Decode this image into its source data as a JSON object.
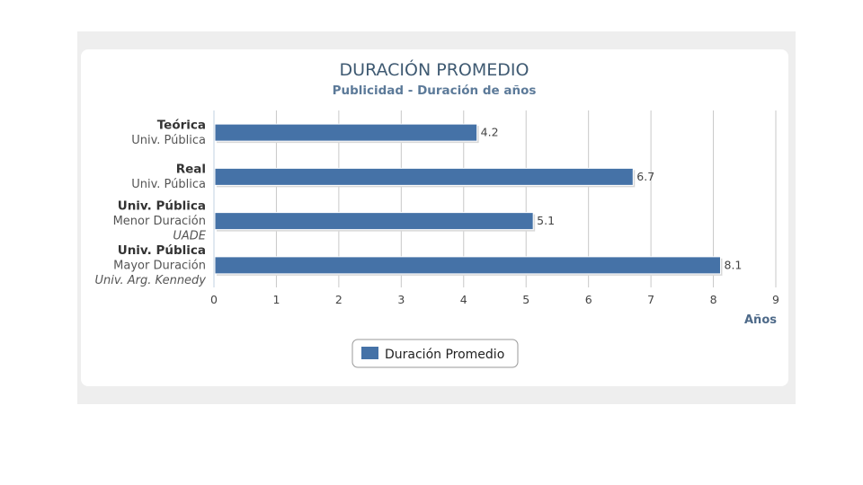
{
  "chart_data": {
    "type": "bar",
    "orientation": "horizontal",
    "title": "DURACIÓN PROMEDIO",
    "subtitle": "Publicidad - Duración de años",
    "categories": [
      {
        "lines": [
          "Teórica",
          "Univ. Pública"
        ]
      },
      {
        "lines": [
          "Real",
          "Univ. Pública"
        ]
      },
      {
        "lines": [
          "Univ. Pública",
          "Menor Duración",
          "UADE"
        ]
      },
      {
        "lines": [
          "Univ. Pública",
          "Mayor Duración",
          "Univ. Arg. Kennedy"
        ]
      }
    ],
    "series": [
      {
        "name": "Duración Promedio",
        "values": [
          4.2,
          6.7,
          5.1,
          8.1
        ],
        "color": "#4572a7"
      }
    ],
    "data_labels": [
      "4.2",
      "6.7",
      "5.1",
      "8.1"
    ],
    "xlabel": "Años",
    "xlim": [
      0,
      9
    ],
    "xticks": [
      "0",
      "1",
      "2",
      "3",
      "4",
      "5",
      "6",
      "7",
      "8",
      "9"
    ],
    "grid": true,
    "legend_position": "bottom-center"
  }
}
